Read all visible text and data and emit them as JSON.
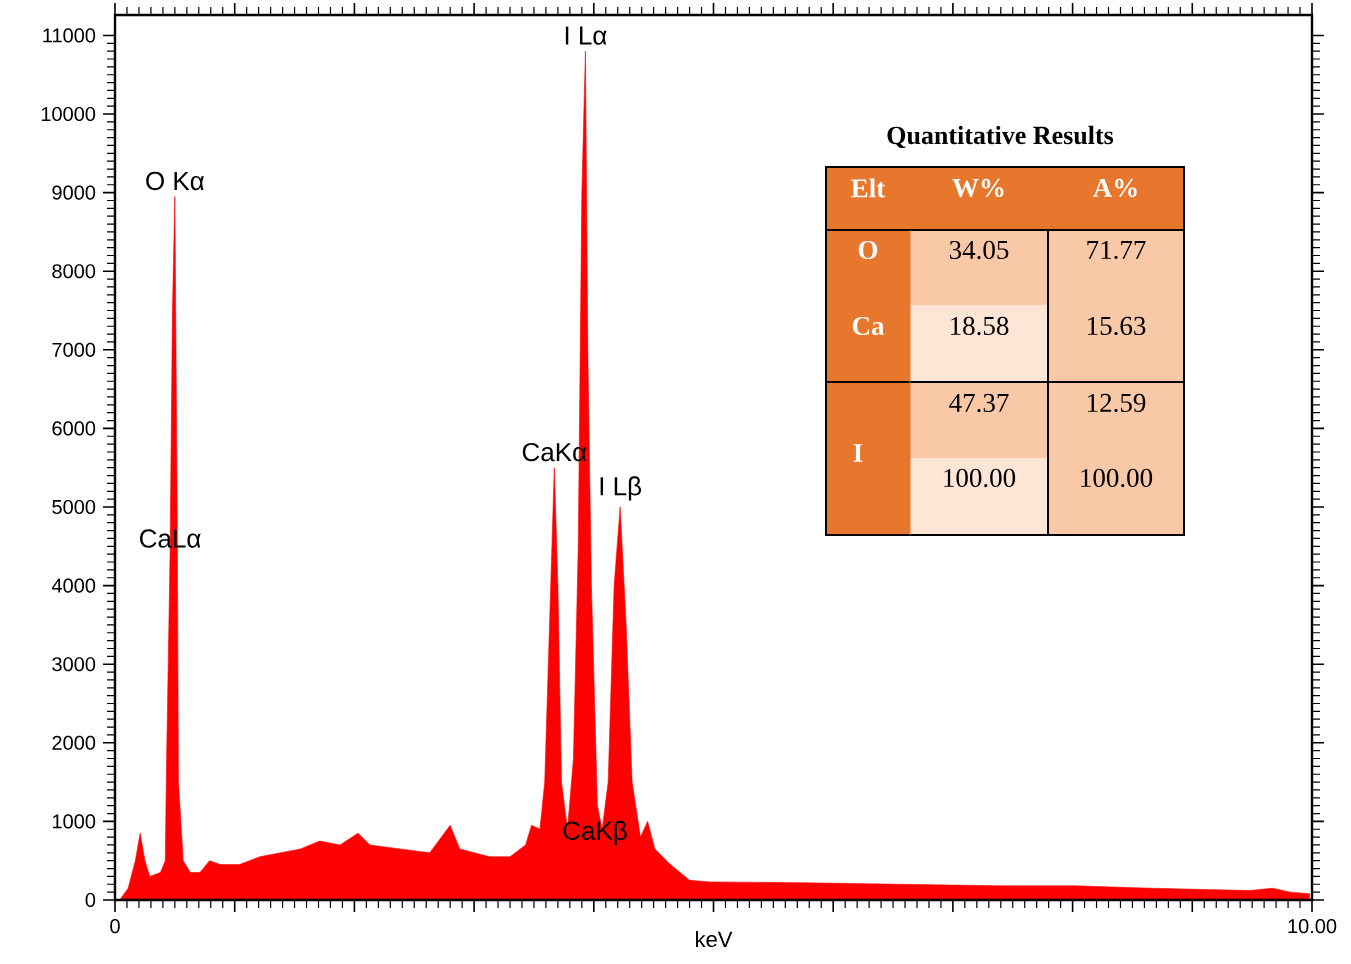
{
  "chart_data": {
    "type": "area",
    "xlabel": "keV",
    "color": "#ff0000",
    "x": [
      0.04,
      0.11,
      0.17,
      0.21,
      0.25,
      0.29,
      0.38,
      0.42,
      0.43,
      0.46,
      0.48,
      0.5,
      0.52,
      0.53,
      0.57,
      0.63,
      0.71,
      0.79,
      0.88,
      1.04,
      1.21,
      1.38,
      1.55,
      1.71,
      1.88,
      2.03,
      2.13,
      2.38,
      2.63,
      2.8,
      2.88,
      3.13,
      3.3,
      3.43,
      3.48,
      3.55,
      3.59,
      3.63,
      3.67,
      3.7,
      3.73,
      3.78,
      3.83,
      3.87,
      3.9,
      3.93,
      3.95,
      3.98,
      4.03,
      4.07,
      4.12,
      4.17,
      4.22,
      4.27,
      4.32,
      4.39,
      4.45,
      4.51,
      4.64,
      4.8,
      4.97,
      5.72,
      6.56,
      7.39,
      8.02,
      8.65,
      9.48,
      9.67,
      9.82,
      9.98
    ],
    "values": [
      0,
      150,
      500,
      850,
      500,
      300,
      350,
      500,
      1700,
      4400,
      7500,
      8950,
      4800,
      1500,
      500,
      350,
      350,
      500,
      450,
      450,
      550,
      600,
      650,
      750,
      700,
      850,
      700,
      650,
      600,
      950,
      650,
      550,
      550,
      700,
      950,
      900,
      1500,
      3500,
      5500,
      4000,
      1500,
      900,
      1800,
      4500,
      9000,
      10800,
      7000,
      4000,
      1200,
      900,
      1500,
      4000,
      5000,
      3500,
      1500,
      800,
      1000,
      650,
      450,
      250,
      230,
      220,
      200,
      180,
      180,
      150,
      120,
      150,
      100,
      80
    ],
    "xlim": [
      0,
      10
    ],
    "ylim": [
      0,
      11260
    ],
    "xticks": [
      {
        "value": 0,
        "label": "0"
      },
      {
        "value": 1,
        "label": null
      },
      {
        "value": 2,
        "label": null
      },
      {
        "value": 3,
        "label": null
      },
      {
        "value": 4,
        "label": null
      },
      {
        "value": 5,
        "label": null
      },
      {
        "value": 6,
        "label": null
      },
      {
        "value": 7,
        "label": null
      },
      {
        "value": 8,
        "label": null
      },
      {
        "value": 9,
        "label": null
      },
      {
        "value": 10,
        "label": "10.00"
      }
    ],
    "yticks": [
      0,
      1000,
      2000,
      3000,
      4000,
      5000,
      6000,
      7000,
      8000,
      9000,
      10000,
      11000
    ],
    "annotations": [
      {
        "text": "O Kα",
        "x": 0.5,
        "y": 8950
      },
      {
        "text": "CaLα",
        "x": 0.46,
        "y": 4400
      },
      {
        "text": "CaKα",
        "x": 3.67,
        "y": 5500
      },
      {
        "text": "I Lα",
        "x": 3.93,
        "y": 10800
      },
      {
        "text": "I Lβ",
        "x": 4.22,
        "y": 5000
      },
      "CaKβ",
      "Quantitative Results",
      "Elt",
      "W%",
      "A%",
      "O",
      "Ca",
      "I",
      "34.05",
      "71.77",
      "18.58",
      "15.63",
      "47.37",
      "12.59",
      "100.00",
      "100.00"
    ]
  }
}
